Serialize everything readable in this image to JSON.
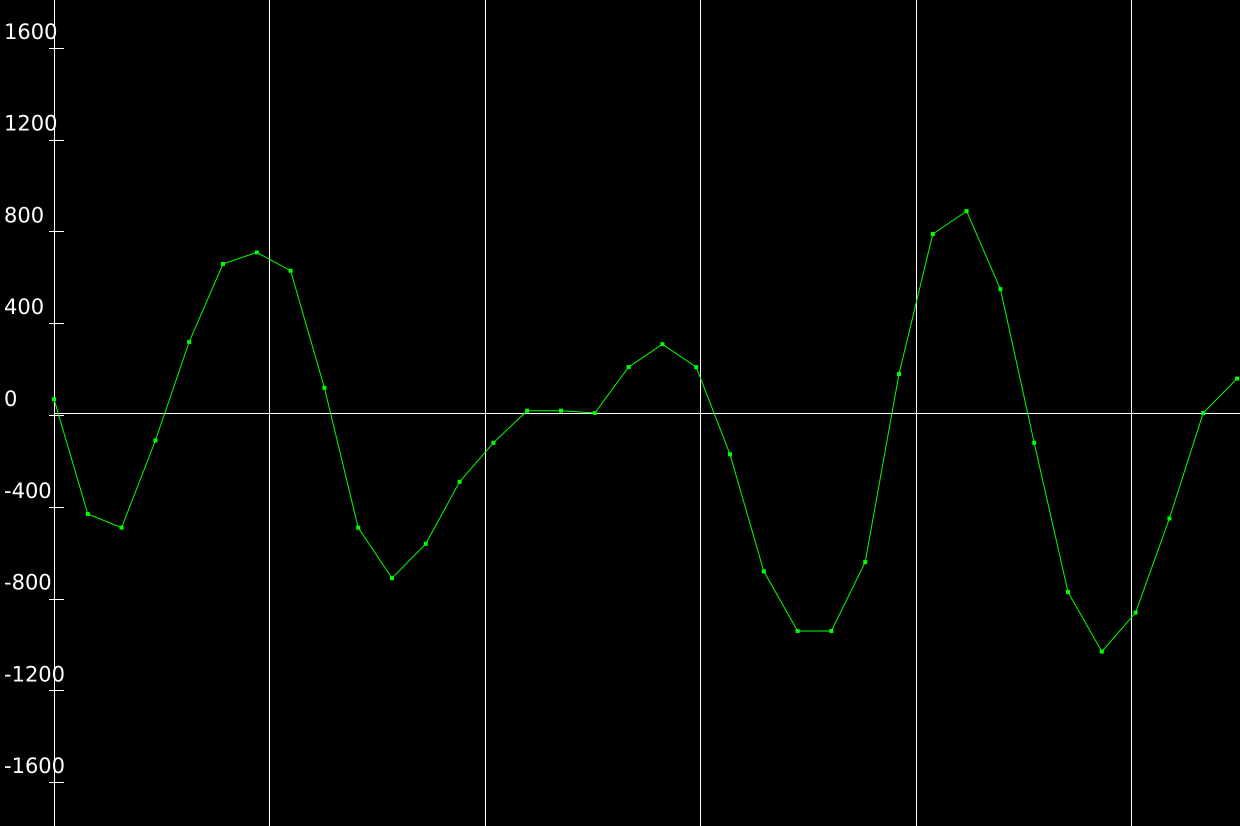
{
  "chart_data": {
    "type": "line",
    "title": "",
    "xlabel": "",
    "ylabel": "",
    "ylim": [
      -1800,
      1800
    ],
    "yticks": [
      1600,
      1200,
      800,
      400,
      0,
      -400,
      -800,
      -1200,
      -1600
    ],
    "ytick_labels": [
      "1600",
      "1200",
      "800",
      "400",
      "0",
      "-400",
      "-800",
      "-1200",
      "-1600"
    ],
    "vertical_grid_at_index": [
      6.375,
      12.75,
      19.125,
      25.5,
      31.875
    ],
    "horizontal_grid_at_value": [
      0
    ],
    "grid": true,
    "legend": false,
    "colors": {
      "background": "#000000",
      "grid": "#ffffff",
      "axis": "#ffffff",
      "text": "#ffffff",
      "line": "#00ff00"
    },
    "series": [
      {
        "values": [
          60,
          -440,
          -500,
          -120,
          310,
          650,
          700,
          620,
          110,
          -500,
          -720,
          -570,
          -300,
          -130,
          10,
          10,
          0,
          200,
          300,
          200,
          -180,
          -690,
          -950,
          -950,
          -650,
          170,
          780,
          880,
          540,
          -130,
          -780,
          -1040,
          -870,
          -460,
          0,
          150
        ]
      }
    ]
  }
}
